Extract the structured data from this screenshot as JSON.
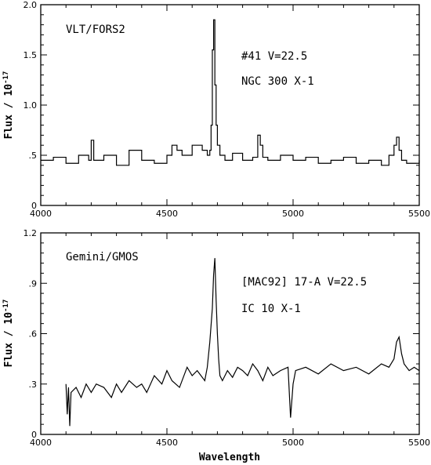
{
  "chart_data": [
    {
      "type": "line",
      "step": true,
      "xlabel": "",
      "ylabel": "Flux / 10",
      "ylabel_exponent": "-17",
      "xlim": [
        4000,
        5500
      ],
      "ylim": [
        0,
        2.0
      ],
      "xticks": [
        4000,
        4500,
        5000,
        5500
      ],
      "xtick_labels": [
        "4000",
        "4500",
        "5000",
        "5500"
      ],
      "yticks": [
        0,
        0.5,
        1.0,
        1.5,
        2.0
      ],
      "ytick_labels": [
        "0",
        ".5",
        "1.0",
        "1.5",
        "2.0"
      ],
      "annotations": [
        "VLT/FORS2",
        "#41 V=22.5",
        "NGC 300 X-1"
      ],
      "series": [
        {
          "x": [
            4000,
            4050,
            4100,
            4150,
            4190,
            4200,
            4210,
            4250,
            4300,
            4350,
            4400,
            4450,
            4500,
            4520,
            4540,
            4560,
            4600,
            4640,
            4660,
            4670,
            4675,
            4680,
            4685,
            4690,
            4695,
            4700,
            4710,
            4730,
            4760,
            4800,
            4840,
            4860,
            4870,
            4880,
            4900,
            4950,
            5000,
            5050,
            5100,
            5150,
            5200,
            5250,
            5300,
            5350,
            5380,
            5400,
            5410,
            5420,
            5430,
            5450,
            5500
          ],
          "y": [
            0.45,
            0.48,
            0.42,
            0.5,
            0.45,
            0.65,
            0.45,
            0.5,
            0.4,
            0.55,
            0.45,
            0.42,
            0.5,
            0.6,
            0.55,
            0.5,
            0.6,
            0.55,
            0.5,
            0.55,
            0.8,
            1.55,
            1.85,
            1.2,
            0.8,
            0.6,
            0.5,
            0.45,
            0.52,
            0.45,
            0.48,
            0.7,
            0.6,
            0.48,
            0.45,
            0.5,
            0.45,
            0.48,
            0.42,
            0.45,
            0.48,
            0.42,
            0.45,
            0.4,
            0.5,
            0.6,
            0.68,
            0.55,
            0.45,
            0.42,
            0.45
          ]
        }
      ]
    },
    {
      "type": "line",
      "xlabel": "Wavelength",
      "ylabel": "Flux / 10",
      "ylabel_exponent": "-17",
      "xlim": [
        4000,
        5500
      ],
      "ylim": [
        0,
        1.2
      ],
      "xticks": [
        4000,
        4500,
        5000,
        5500
      ],
      "xtick_labels": [
        "4000",
        "4500",
        "5000",
        "5500"
      ],
      "yticks": [
        0,
        0.3,
        0.6,
        0.9,
        1.2
      ],
      "ytick_labels": [
        "0",
        ".3",
        ".6",
        ".9",
        "1.2"
      ],
      "annotations": [
        "Gemini/GMOS",
        "[MAC92] 17-A V=22.5",
        "IC 10 X-1"
      ],
      "series": [
        {
          "x": [
            4100,
            4105,
            4110,
            4115,
            4120,
            4140,
            4160,
            4180,
            4200,
            4220,
            4250,
            4280,
            4300,
            4320,
            4350,
            4380,
            4400,
            4420,
            4450,
            4480,
            4500,
            4520,
            4550,
            4580,
            4600,
            4620,
            4650,
            4660,
            4670,
            4680,
            4685,
            4690,
            4695,
            4700,
            4705,
            4710,
            4720,
            4740,
            4760,
            4780,
            4800,
            4820,
            4840,
            4860,
            4880,
            4900,
            4920,
            4950,
            4980,
            4990,
            5000,
            5010,
            5050,
            5100,
            5150,
            5200,
            5250,
            5300,
            5350,
            5380,
            5400,
            5410,
            5420,
            5430,
            5440,
            5460,
            5480,
            5500
          ],
          "y": [
            0.3,
            0.12,
            0.28,
            0.05,
            0.25,
            0.28,
            0.22,
            0.3,
            0.25,
            0.3,
            0.28,
            0.22,
            0.3,
            0.25,
            0.32,
            0.28,
            0.3,
            0.25,
            0.35,
            0.3,
            0.38,
            0.32,
            0.28,
            0.4,
            0.35,
            0.38,
            0.32,
            0.4,
            0.55,
            0.75,
            0.95,
            1.05,
            0.8,
            0.6,
            0.45,
            0.35,
            0.32,
            0.38,
            0.34,
            0.4,
            0.38,
            0.35,
            0.42,
            0.38,
            0.32,
            0.4,
            0.35,
            0.38,
            0.4,
            0.1,
            0.3,
            0.38,
            0.4,
            0.36,
            0.42,
            0.38,
            0.4,
            0.36,
            0.42,
            0.4,
            0.45,
            0.55,
            0.58,
            0.48,
            0.42,
            0.38,
            0.4,
            0.38
          ]
        }
      ]
    }
  ]
}
